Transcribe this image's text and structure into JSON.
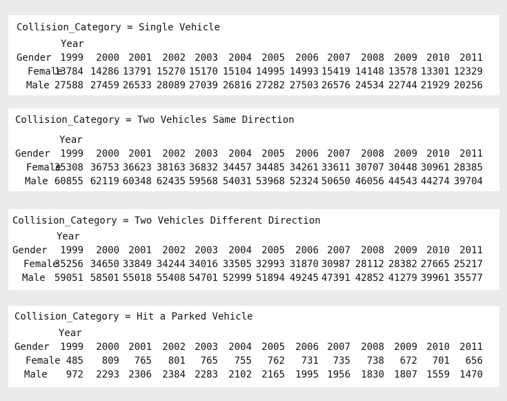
{
  "years_label": "Year",
  "gender_label": "Gender",
  "years": [
    "1999",
    "2000",
    "2001",
    "2002",
    "2003",
    "2004",
    "2005",
    "2006",
    "2007",
    "2008",
    "2009",
    "2010",
    "2011"
  ],
  "panels": [
    {
      "title": "Collision_Category = Single Vehicle",
      "rows": [
        {
          "label": "Female",
          "values": [
            "13784",
            "14286",
            "13791",
            "15270",
            "15170",
            "15104",
            "14995",
            "14993",
            "15419",
            "14148",
            "13578",
            "13301",
            "12329"
          ]
        },
        {
          "label": "Male",
          "values": [
            "27588",
            "27459",
            "26533",
            "28089",
            "27039",
            "26816",
            "27282",
            "27503",
            "26576",
            "24534",
            "22744",
            "21929",
            "20256"
          ]
        }
      ]
    },
    {
      "title": "Collision_Category = Two Vehicles Same Direction",
      "rows": [
        {
          "label": "Female",
          "values": [
            "35308",
            "36753",
            "36623",
            "38163",
            "36832",
            "34457",
            "34485",
            "34261",
            "33611",
            "30707",
            "30448",
            "30961",
            "28385"
          ]
        },
        {
          "label": "Male",
          "values": [
            "60855",
            "62119",
            "60348",
            "62435",
            "59568",
            "54031",
            "53968",
            "52324",
            "50650",
            "46056",
            "44543",
            "44274",
            "39704"
          ]
        }
      ]
    },
    {
      "title": "Collision_Category = Two Vehicles Different Direction",
      "rows": [
        {
          "label": "Female",
          "values": [
            "35256",
            "34650",
            "33849",
            "34244",
            "34016",
            "33505",
            "32993",
            "31870",
            "30987",
            "28112",
            "28382",
            "27665",
            "25217"
          ]
        },
        {
          "label": "Male",
          "values": [
            "59051",
            "58501",
            "55018",
            "55408",
            "54701",
            "52999",
            "51894",
            "49245",
            "47391",
            "42852",
            "41279",
            "39961",
            "35577"
          ]
        }
      ]
    },
    {
      "title": "Collision_Category = Hit a Parked Vehicle",
      "rows": [
        {
          "label": "Female",
          "values": [
            "485",
            "809",
            "765",
            "801",
            "765",
            "755",
            "762",
            "731",
            "735",
            "738",
            "672",
            "701",
            "656"
          ]
        },
        {
          "label": "Male",
          "values": [
            "972",
            "2293",
            "2306",
            "2384",
            "2283",
            "2102",
            "2165",
            "1995",
            "1956",
            "1830",
            "1807",
            "1559",
            "1470"
          ]
        }
      ]
    }
  ]
}
